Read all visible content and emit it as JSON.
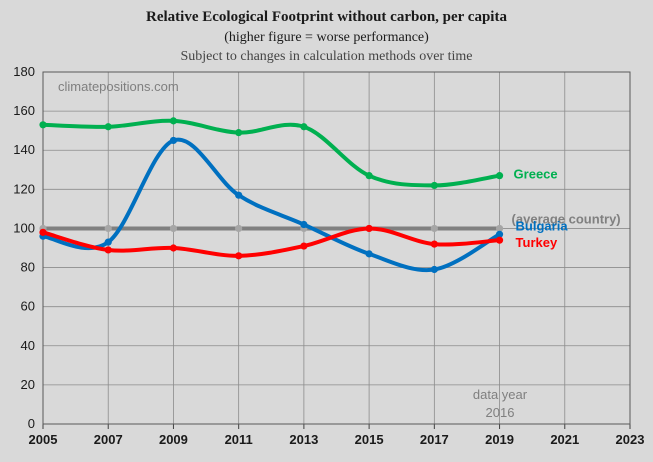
{
  "chart_data": {
    "type": "line",
    "title_prefix": "Relative Ecological Footprint ",
    "title_bold": "without carbon",
    "title_suffix": ", per capita",
    "subtitle": "(higher figure = worse performance)",
    "note": "Subject to changes in calculation methods over time",
    "watermark": "climatepositions.com",
    "data_year_label": "data year",
    "data_year_value": "2016",
    "x": [
      2005,
      2007,
      2009,
      2011,
      2013,
      2015,
      2017,
      2019
    ],
    "xlim": [
      2005,
      2023
    ],
    "xticks": [
      "2005",
      "2007",
      "2009",
      "2011",
      "2013",
      "2015",
      "2017",
      "2019",
      "2021",
      "2023"
    ],
    "ylim": [
      0,
      180
    ],
    "yticks": [
      "0",
      "20",
      "40",
      "60",
      "80",
      "100",
      "120",
      "140",
      "160",
      "180"
    ],
    "grid": true,
    "series": [
      {
        "name": "(average country)",
        "color": "#808080",
        "values": [
          100,
          100,
          100,
          100,
          100,
          100,
          100,
          100
        ]
      },
      {
        "name": "Greece",
        "color": "#00b050",
        "values": [
          153,
          152,
          155,
          149,
          152,
          127,
          122,
          127
        ]
      },
      {
        "name": "Bulgaria",
        "color": "#0070c0",
        "values": [
          96,
          93,
          145,
          117,
          102,
          87,
          79,
          97
        ]
      },
      {
        "name": "Turkey",
        "color": "#ff0000",
        "values": [
          98,
          89,
          90,
          86,
          91,
          100,
          92,
          94
        ]
      }
    ]
  }
}
